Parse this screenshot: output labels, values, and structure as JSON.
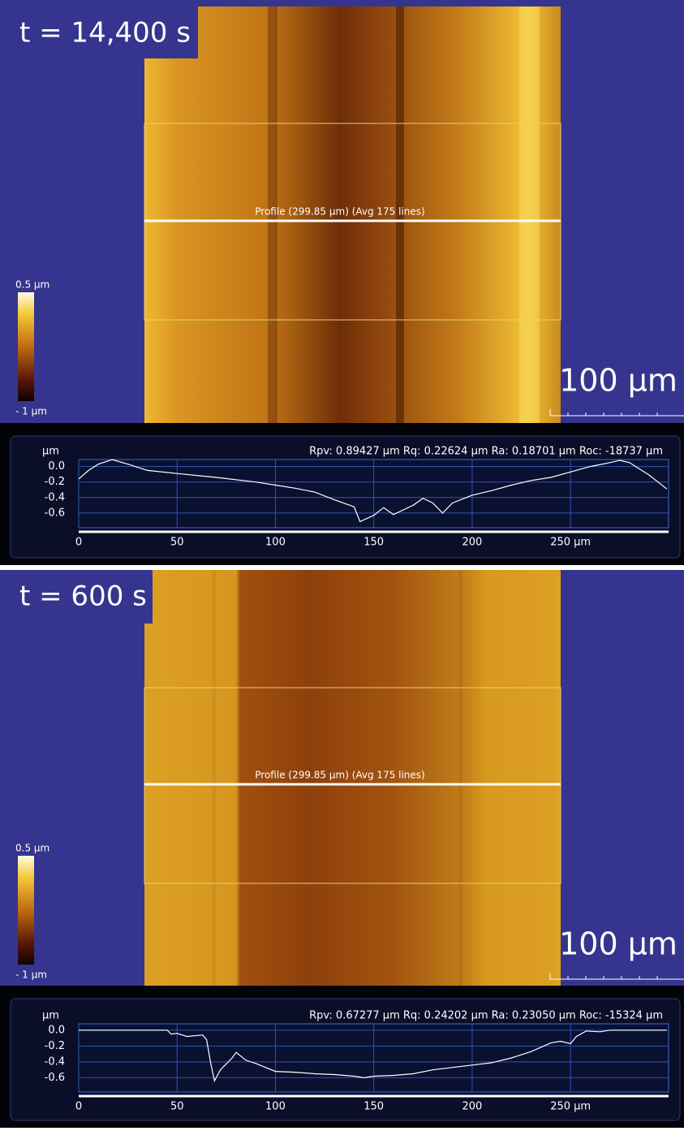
{
  "panels": [
    {
      "time_label": "t = 14,400 s",
      "profile_label": "Profile (299.85 µm) (Avg 175 lines)",
      "colorbar_max": "0.5 µm",
      "colorbar_min": "- 1 µm",
      "scale_bar": "100 µm"
    },
    {
      "time_label": "t = 600 s",
      "profile_label": "Profile (299.85 µm) (Avg 175 lines)",
      "colorbar_max": "0.5 µm",
      "colorbar_min": "- 1 µm",
      "scale_bar": "100 µm"
    }
  ],
  "chart_data": [
    {
      "type": "line",
      "y_unit": "µm",
      "stats": "Rpv: 0.89427 µm  Rq: 0.22624 µm  Ra: 0.18701 µm  Roc: -18737 µm",
      "color": "#ffffff",
      "x": [
        0,
        5,
        10,
        17,
        25,
        35,
        50,
        70,
        90,
        100,
        110,
        120,
        130,
        140,
        143,
        150,
        155,
        160,
        170,
        175,
        180,
        185,
        190,
        200,
        210,
        220,
        230,
        240,
        250,
        260,
        270,
        275,
        280,
        285,
        290,
        299
      ],
      "values": [
        -0.16,
        -0.05,
        0.03,
        0.09,
        0.03,
        -0.05,
        -0.09,
        -0.14,
        -0.2,
        -0.24,
        -0.28,
        -0.33,
        -0.43,
        -0.52,
        -0.71,
        -0.63,
        -0.53,
        -0.62,
        -0.5,
        -0.41,
        -0.47,
        -0.6,
        -0.47,
        -0.37,
        -0.31,
        -0.24,
        -0.18,
        -0.14,
        -0.07,
        0.0,
        0.05,
        0.08,
        0.05,
        -0.03,
        -0.11,
        -0.29
      ],
      "xlim": [
        0,
        299.85
      ],
      "ylim": [
        -0.79,
        0.09
      ],
      "xticks": [
        0,
        50,
        100,
        150,
        200,
        {
          "value": 250,
          "label": "250 µm"
        }
      ],
      "yticks": [
        {
          "value": 0,
          "label": "0.0"
        },
        -0.2,
        -0.4,
        -0.6
      ],
      "grid": true
    },
    {
      "type": "line",
      "y_unit": "µm",
      "stats": "Rpv: 0.67277 µm  Rq: 0.24202 µm  Ra: 0.23050 µm  Roc: -15324 µm",
      "color": "#ffffff",
      "x": [
        0,
        45,
        47,
        50,
        55,
        63,
        65,
        67,
        69,
        72,
        78,
        80,
        85,
        90,
        95,
        100,
        110,
        120,
        130,
        140,
        145,
        150,
        160,
        170,
        180,
        190,
        200,
        210,
        220,
        230,
        240,
        245,
        250,
        253,
        258,
        265,
        270,
        299
      ],
      "values": [
        0.0,
        0.0,
        -0.05,
        -0.04,
        -0.08,
        -0.06,
        -0.12,
        -0.4,
        -0.64,
        -0.5,
        -0.35,
        -0.28,
        -0.38,
        -0.42,
        -0.47,
        -0.52,
        -0.53,
        -0.55,
        -0.56,
        -0.58,
        -0.6,
        -0.58,
        -0.57,
        -0.55,
        -0.5,
        -0.47,
        -0.44,
        -0.41,
        -0.35,
        -0.27,
        -0.16,
        -0.14,
        -0.17,
        -0.08,
        -0.01,
        -0.02,
        0.0,
        0.0
      ],
      "xlim": [
        0,
        299.85
      ],
      "ylim": [
        -0.78,
        0.08
      ],
      "xticks": [
        0,
        50,
        100,
        150,
        200,
        {
          "value": 250,
          "label": "250 µm"
        }
      ],
      "yticks": [
        {
          "value": 0,
          "label": "0.0"
        },
        -0.2,
        -0.4,
        -0.6
      ],
      "grid": true
    }
  ]
}
